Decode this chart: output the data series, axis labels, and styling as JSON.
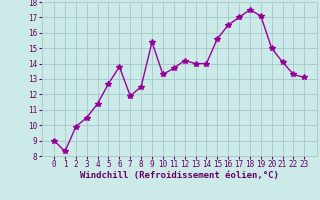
{
  "x": [
    0,
    1,
    2,
    3,
    4,
    5,
    6,
    7,
    8,
    9,
    10,
    11,
    12,
    13,
    14,
    15,
    16,
    17,
    18,
    19,
    20,
    21,
    22,
    23
  ],
  "y": [
    9.0,
    8.3,
    9.9,
    10.5,
    11.4,
    12.7,
    13.8,
    11.9,
    12.5,
    15.4,
    13.3,
    13.7,
    14.2,
    14.0,
    14.0,
    15.6,
    16.5,
    17.0,
    17.5,
    17.1,
    15.0,
    14.1,
    13.3,
    13.1
  ],
  "line_color": "#990099",
  "marker": "*",
  "marker_size": 4,
  "bg_color": "#cceae7",
  "grid_color": "#aacccc",
  "xlabel": "Windchill (Refroidissement éolien,°C)",
  "ylim": [
    8,
    18
  ],
  "yticks": [
    8,
    9,
    10,
    11,
    12,
    13,
    14,
    15,
    16,
    17,
    18
  ],
  "xticks": [
    0,
    1,
    2,
    3,
    4,
    5,
    6,
    7,
    8,
    9,
    10,
    11,
    12,
    13,
    14,
    15,
    16,
    17,
    18,
    19,
    20,
    21,
    22,
    23
  ],
  "xlabel_color": "#660066",
  "tick_color": "#660066",
  "tick_fontsize": 5.5,
  "xlabel_fontsize": 6.5,
  "font": "monospace"
}
